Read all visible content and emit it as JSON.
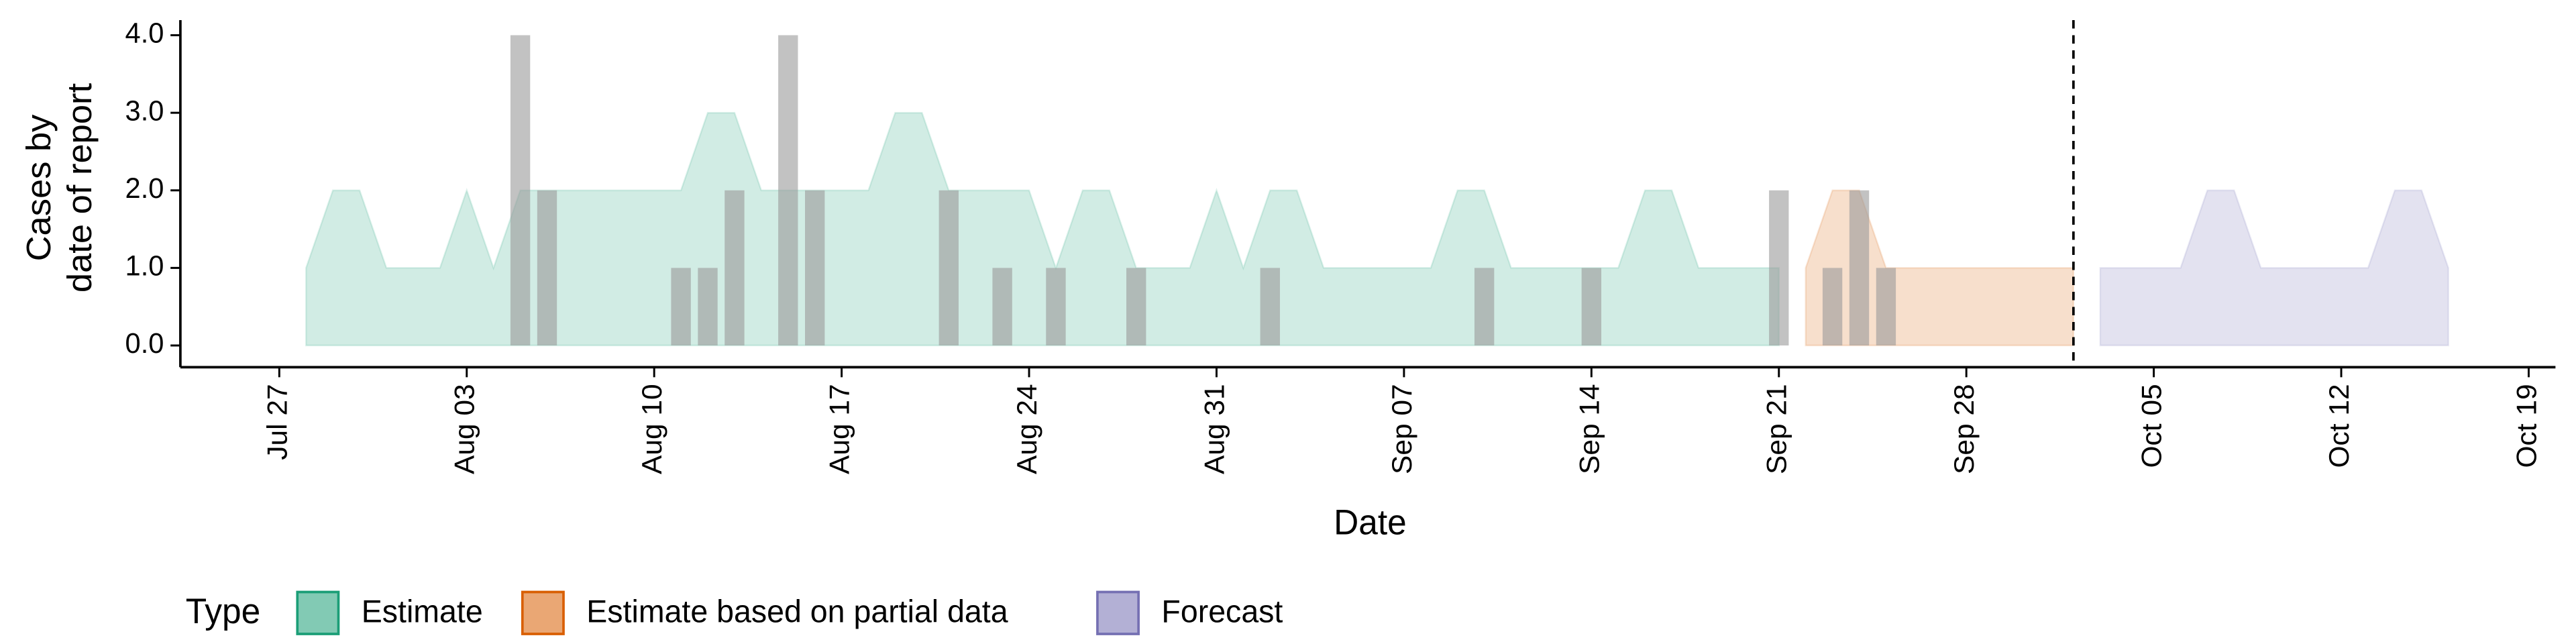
{
  "chart_data": {
    "type": "area",
    "xlabel": "Date",
    "ylabel": [
      "Cases by",
      "date of report"
    ],
    "legend_title": "Type",
    "legend": "bottom",
    "ylim": [
      -0.15,
      4.2
    ],
    "yticks": [
      {
        "value": 0,
        "label": "0.0"
      },
      {
        "value": 1,
        "label": "1.0"
      },
      {
        "value": 2,
        "label": "2.0"
      },
      {
        "value": 3,
        "label": "3.0"
      },
      {
        "value": 4,
        "label": "4.0"
      }
    ],
    "xlim": [
      "Jul 23",
      "Oct 20"
    ],
    "xticks": [
      "Jul 27",
      "Aug 03",
      "Aug 10",
      "Aug 17",
      "Aug 24",
      "Aug 31",
      "Sep 07",
      "Sep 14",
      "Sep 21",
      "Sep 28",
      "Oct 05",
      "Oct 12",
      "Oct 19"
    ],
    "vline": "Oct 02",
    "series": [
      {
        "name": "Estimate",
        "color": "#1b9e77",
        "x": [
          "Jul 28",
          "Jul 29",
          "Jul 30",
          "Jul 31",
          "Aug 01",
          "Aug 02",
          "Aug 03",
          "Aug 04",
          "Aug 05",
          "Aug 06",
          "Aug 07",
          "Aug 08",
          "Aug 09",
          "Aug 10",
          "Aug 11",
          "Aug 12",
          "Aug 13",
          "Aug 14",
          "Aug 15",
          "Aug 16",
          "Aug 17",
          "Aug 18",
          "Aug 19",
          "Aug 20",
          "Aug 21",
          "Aug 22",
          "Aug 23",
          "Aug 24",
          "Aug 25",
          "Aug 26",
          "Aug 27",
          "Aug 28",
          "Aug 29",
          "Aug 30",
          "Aug 31",
          "Sep 01",
          "Sep 02",
          "Sep 03",
          "Sep 04",
          "Sep 05",
          "Sep 06",
          "Sep 07",
          "Sep 08",
          "Sep 09",
          "Sep 10",
          "Sep 11",
          "Sep 12",
          "Sep 13",
          "Sep 14",
          "Sep 15",
          "Sep 16",
          "Sep 17",
          "Sep 18",
          "Sep 19",
          "Sep 20",
          "Sep 21"
        ],
        "values": [
          1,
          2,
          2,
          1,
          1,
          1,
          2,
          1,
          2,
          2,
          2,
          2,
          2,
          2,
          2,
          3,
          3,
          2,
          2,
          2,
          2,
          2,
          3,
          3,
          2,
          2,
          2,
          2,
          1,
          2,
          2,
          1,
          1,
          1,
          2,
          1,
          2,
          2,
          1,
          1,
          1,
          1,
          1,
          2,
          2,
          1,
          1,
          1,
          1,
          1,
          2,
          2,
          1,
          1,
          1,
          1
        ]
      },
      {
        "name": "Estimate based on partial data",
        "color": "#d95f02",
        "x": [
          "Sep 22",
          "Sep 23",
          "Sep 24",
          "Sep 25",
          "Sep 26",
          "Sep 27",
          "Sep 28",
          "Sep 29",
          "Sep 30",
          "Oct 01",
          "Oct 02"
        ],
        "values": [
          1,
          2,
          2,
          1,
          1,
          1,
          1,
          1,
          1,
          1,
          1
        ]
      },
      {
        "name": "Forecast",
        "color": "#7570b3",
        "x": [
          "Oct 03",
          "Oct 04",
          "Oct 05",
          "Oct 06",
          "Oct 07",
          "Oct 08",
          "Oct 09",
          "Oct 10",
          "Oct 11",
          "Oct 12",
          "Oct 13",
          "Oct 14",
          "Oct 15",
          "Oct 16"
        ],
        "values": [
          1,
          1,
          1,
          1,
          2,
          2,
          1,
          1,
          1,
          1,
          1,
          2,
          2,
          1
        ]
      }
    ],
    "bars": {
      "color": "#999999",
      "x": [
        "Aug 05",
        "Aug 06",
        "Aug 11",
        "Aug 12",
        "Aug 13",
        "Aug 15",
        "Aug 16",
        "Aug 21",
        "Aug 23",
        "Aug 25",
        "Aug 28",
        "Sep 02",
        "Sep 10",
        "Sep 14",
        "Sep 21",
        "Sep 23",
        "Sep 24",
        "Sep 25"
      ],
      "values": [
        4,
        2,
        1,
        1,
        2,
        4,
        2,
        2,
        1,
        1,
        1,
        1,
        1,
        1,
        2,
        1,
        2,
        1
      ]
    }
  }
}
